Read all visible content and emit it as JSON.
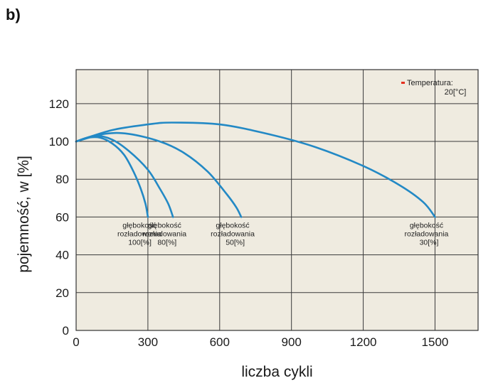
{
  "panel_label": "b)",
  "chart_data": {
    "type": "line",
    "title": "",
    "xlabel": "liczba cykli",
    "ylabel": "pojemność, w [%]",
    "xlim": [
      0,
      1680
    ],
    "ylim": [
      0,
      138
    ],
    "x_ticks": [
      0,
      300,
      600,
      900,
      1200,
      1500
    ],
    "y_ticks": [
      0,
      20,
      40,
      60,
      80,
      100,
      120
    ],
    "grid": true,
    "background": "#efebe0",
    "line_color": "#2389c5",
    "legend": {
      "position": "top-right",
      "marker_color": "#e53020",
      "lines": [
        "Temperatura:",
        "20[°C]"
      ]
    },
    "series": [
      {
        "label_lines": [
          "głębokość",
          "rozładowania",
          "100[%]"
        ],
        "points": [
          [
            0,
            100
          ],
          [
            50,
            102
          ],
          [
            100,
            102
          ],
          [
            150,
            99
          ],
          [
            200,
            93
          ],
          [
            240,
            84
          ],
          [
            270,
            75
          ],
          [
            290,
            67
          ],
          [
            300,
            60
          ]
        ]
      },
      {
        "label_lines": [
          "głębokość",
          "rozładowania",
          "80[%]"
        ],
        "points": [
          [
            0,
            100
          ],
          [
            80,
            103
          ],
          [
            150,
            101
          ],
          [
            220,
            95
          ],
          [
            300,
            85
          ],
          [
            350,
            75
          ],
          [
            385,
            67
          ],
          [
            405,
            60
          ]
        ]
      },
      {
        "label_lines": [
          "głębokość",
          "rozładowania",
          "50[%]"
        ],
        "points": [
          [
            0,
            100
          ],
          [
            120,
            104
          ],
          [
            220,
            104
          ],
          [
            350,
            100
          ],
          [
            450,
            94
          ],
          [
            550,
            84
          ],
          [
            630,
            72
          ],
          [
            670,
            65
          ],
          [
            690,
            60
          ]
        ]
      },
      {
        "label_lines": [
          "głębokość",
          "rozładowania",
          "30[%]"
        ],
        "points": [
          [
            0,
            100
          ],
          [
            150,
            106
          ],
          [
            300,
            109
          ],
          [
            400,
            110
          ],
          [
            600,
            109
          ],
          [
            800,
            104
          ],
          [
            1000,
            97
          ],
          [
            1200,
            87
          ],
          [
            1350,
            77
          ],
          [
            1450,
            68
          ],
          [
            1500,
            60
          ]
        ]
      }
    ]
  }
}
